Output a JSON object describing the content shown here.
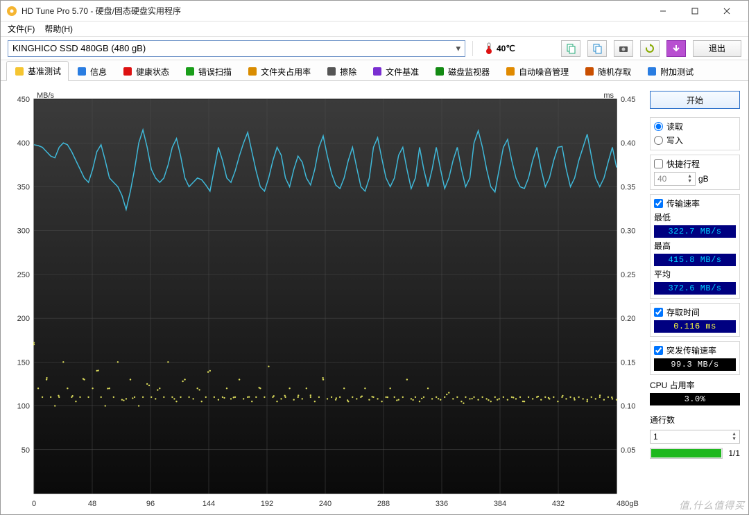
{
  "window": {
    "title": "HD Tune Pro 5.70 - 硬盘/固态硬盘实用程序",
    "min": "—",
    "max": "□",
    "close": "✕"
  },
  "menu": {
    "file": "文件(F)",
    "help": "帮助(H)"
  },
  "device": {
    "selected": "KINGHICO SSD 480GB (480 gB)",
    "temperature": "40℃"
  },
  "toolbar": {
    "btn1": "copy",
    "btn2": "copy2",
    "btn3": "camera",
    "btn4": "refresh",
    "btn5": "down",
    "exit": "退出"
  },
  "tabs": [
    {
      "id": "benchmark",
      "label": "基准测试",
      "color": "#f5c531",
      "active": true
    },
    {
      "id": "info",
      "label": "信息",
      "color": "#2a7de1"
    },
    {
      "id": "health",
      "label": "健康状态",
      "color": "#d11"
    },
    {
      "id": "errorscan",
      "label": "错误扫描",
      "color": "#1a9e1a"
    },
    {
      "id": "folderusage",
      "label": "文件夹占用率",
      "color": "#d98c00"
    },
    {
      "id": "erase",
      "label": "擦除",
      "color": "#555"
    },
    {
      "id": "filebench",
      "label": "文件基准",
      "color": "#7a2fd1"
    },
    {
      "id": "diskmon",
      "label": "磁盘监视器",
      "color": "#138a13"
    },
    {
      "id": "aam",
      "label": "自动噪音管理",
      "color": "#e08a00"
    },
    {
      "id": "random",
      "label": "随机存取",
      "color": "#c94f00"
    },
    {
      "id": "extra",
      "label": "附加测试",
      "color": "#2a7de1"
    }
  ],
  "chart": {
    "y_left_title": "MB/s",
    "y_right_title": "ms",
    "x_unit": "gB",
    "x_max_label": "480gB",
    "x_ticks": [
      0,
      48,
      96,
      144,
      192,
      240,
      288,
      336,
      384,
      432
    ],
    "y_left_ticks": [
      50,
      100,
      150,
      200,
      250,
      300,
      350,
      400,
      450
    ],
    "y_right_ticks": [
      "0.05",
      "0.10",
      "0.15",
      "0.20",
      "0.25",
      "0.30",
      "0.35",
      "0.40",
      "0.45"
    ],
    "y_left_min": 0,
    "y_left_max": 450,
    "y_right_min": 0,
    "y_right_max": 0.45,
    "x_min": 0,
    "x_max": 480,
    "bg_top": "#3b3b3b",
    "bg_bottom": "#0a0a0a",
    "grid_color": "#4d4d4d",
    "line_color": "#3fb8d8",
    "dot_color": "#d8d85a",
    "transfer_series": [
      398,
      397,
      395,
      390,
      385,
      383,
      395,
      400,
      398,
      390,
      380,
      370,
      360,
      355,
      370,
      390,
      398,
      380,
      360,
      355,
      350,
      340,
      324,
      345,
      370,
      400,
      415,
      395,
      370,
      360,
      355,
      360,
      375,
      395,
      405,
      385,
      360,
      350,
      355,
      360,
      358,
      352,
      345,
      370,
      395,
      380,
      360,
      355,
      368,
      385,
      400,
      412,
      390,
      368,
      350,
      345,
      360,
      380,
      395,
      386,
      360,
      350,
      370,
      385,
      378,
      360,
      352,
      370,
      395,
      408,
      385,
      365,
      352,
      348,
      360,
      380,
      395,
      372,
      350,
      345,
      360,
      395,
      406,
      382,
      360,
      350,
      360,
      386,
      395,
      370,
      348,
      360,
      395,
      370,
      350,
      370,
      395,
      370,
      348,
      360,
      380,
      395,
      370,
      350,
      360,
      400,
      414,
      395,
      370,
      350,
      344,
      370,
      395,
      404,
      380,
      360,
      350,
      348,
      360,
      380,
      395,
      370,
      350,
      360,
      380,
      395,
      396,
      370,
      350,
      360,
      380,
      395,
      410,
      385,
      360,
      350,
      360,
      378,
      395,
      372
    ],
    "access_series": [
      0.17,
      0.12,
      0.11,
      0.13,
      0.11,
      0.1,
      0.11,
      0.15,
      0.12,
      0.11,
      0.105,
      0.11,
      0.13,
      0.11,
      0.12,
      0.14,
      0.11,
      0.1,
      0.12,
      0.11,
      0.15,
      0.107,
      0.108,
      0.13,
      0.11,
      0.1,
      0.11,
      0.125,
      0.11,
      0.108,
      0.12,
      0.11,
      0.15,
      0.11,
      0.105,
      0.11,
      0.13,
      0.11,
      0.108,
      0.12,
      0.105,
      0.11,
      0.14,
      0.11,
      0.107,
      0.11,
      0.12,
      0.108,
      0.11,
      0.13,
      0.108,
      0.11,
      0.105,
      0.11,
      0.12,
      0.11,
      0.145,
      0.11,
      0.105,
      0.108,
      0.11,
      0.12,
      0.107,
      0.11,
      0.108,
      0.12,
      0.11,
      0.105,
      0.11,
      0.13,
      0.108,
      0.11,
      0.107,
      0.11,
      0.12,
      0.105,
      0.11,
      0.108,
      0.11,
      0.12,
      0.107,
      0.11,
      0.108,
      0.105,
      0.11,
      0.12,
      0.11,
      0.107,
      0.11,
      0.13,
      0.108,
      0.11,
      0.105,
      0.11,
      0.12,
      0.108,
      0.11,
      0.107,
      0.11,
      0.115,
      0.108,
      0.11,
      0.105,
      0.11,
      0.108,
      0.11,
      0.107,
      0.11,
      0.108,
      0.105,
      0.11,
      0.108,
      0.11,
      0.107,
      0.11,
      0.108,
      0.11,
      0.105,
      0.11,
      0.108,
      0.11,
      0.107,
      0.11,
      0.108,
      0.11,
      0.105,
      0.11,
      0.108,
      0.11,
      0.107,
      0.11,
      0.108,
      0.105,
      0.11,
      0.108,
      0.11,
      0.107,
      0.11,
      0.108,
      0.107
    ]
  },
  "side": {
    "start": "开始",
    "read": "读取",
    "write": "写入",
    "shortstroke": "快捷行程",
    "shortstroke_val": "40",
    "shortstroke_unit": "gB",
    "transfer": "传输速率",
    "min_l": "最低",
    "min_v": "322.7 MB/s",
    "max_l": "最高",
    "max_v": "415.8 MB/s",
    "avg_l": "平均",
    "avg_v": "372.6 MB/s",
    "access_l": "存取时间",
    "access_v": "0.116 ms",
    "burst_l": "突发传输速率",
    "burst_v": "99.3 MB/s",
    "cpu_l": "CPU 占用率",
    "cpu_v": "3.0%",
    "pass_l": "通行数",
    "pass_v": "1",
    "progress_label": "1/1"
  },
  "watermark": "值,什么值得买"
}
